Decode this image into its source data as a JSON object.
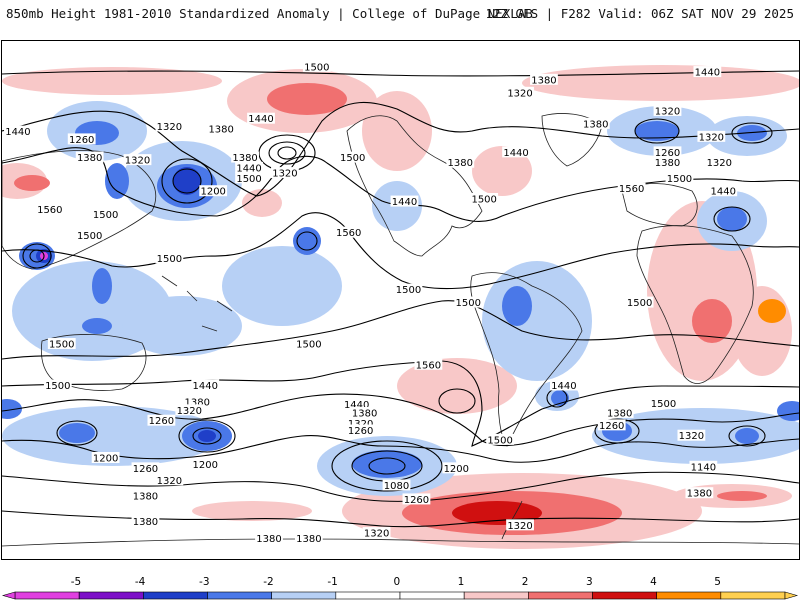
{
  "header": {
    "title_left": "850mb Height 1981-2010 Standardized Anomaly | College of DuPage NEXLAB",
    "title_right": "12Z GFS | F282 Valid: 06Z SAT NOV 29 2025"
  },
  "colors": {
    "neg5": "#e040e0",
    "neg4": "#7d10c8",
    "neg3": "#1f3fc8",
    "neg2": "#4a78e8",
    "neg1": "#b7d0f5",
    "zero": "#ffffff",
    "pos1": "#f8c8c8",
    "pos2": "#f07070",
    "pos3": "#d01010",
    "pos4": "#ff8c00",
    "pos5": "#ffd050",
    "contour": "#000000",
    "coast": "#222222"
  },
  "colorbar": {
    "ticks": [
      "-5",
      "-4",
      "-3",
      "-2",
      "-1",
      "0",
      "1",
      "2",
      "3",
      "4",
      "5"
    ]
  },
  "contour_labels": [
    {
      "text": "1440",
      "lon": 0.02,
      "lat": 0.175
    },
    {
      "text": "1260",
      "lon": 0.1,
      "lat": 0.19
    },
    {
      "text": "1380",
      "lon": 0.11,
      "lat": 0.225
    },
    {
      "text": "1320",
      "lon": 0.17,
      "lat": 0.23
    },
    {
      "text": "1560",
      "lon": 0.06,
      "lat": 0.325
    },
    {
      "text": "1500",
      "lon": 0.13,
      "lat": 0.335
    },
    {
      "text": "1500",
      "lon": 0.11,
      "lat": 0.375
    },
    {
      "text": "1320",
      "lon": 0.21,
      "lat": 0.165
    },
    {
      "text": "1380",
      "lon": 0.275,
      "lat": 0.17
    },
    {
      "text": "1440",
      "lon": 0.325,
      "lat": 0.15
    },
    {
      "text": "1500",
      "lon": 0.395,
      "lat": 0.05
    },
    {
      "text": "1380",
      "lon": 0.305,
      "lat": 0.225
    },
    {
      "text": "1440",
      "lon": 0.31,
      "lat": 0.245
    },
    {
      "text": "1500",
      "lon": 0.31,
      "lat": 0.265
    },
    {
      "text": "1320",
      "lon": 0.355,
      "lat": 0.255
    },
    {
      "text": "1200",
      "lon": 0.265,
      "lat": 0.29
    },
    {
      "text": "1500",
      "lon": 0.44,
      "lat": 0.225
    },
    {
      "text": "1560",
      "lon": 0.435,
      "lat": 0.37
    },
    {
      "text": "1500",
      "lon": 0.21,
      "lat": 0.42
    },
    {
      "text": "1500",
      "lon": 0.585,
      "lat": 0.505
    },
    {
      "text": "1500",
      "lon": 0.51,
      "lat": 0.48
    },
    {
      "text": "1500",
      "lon": 0.075,
      "lat": 0.585
    },
    {
      "text": "1500",
      "lon": 0.385,
      "lat": 0.585
    },
    {
      "text": "1500",
      "lon": 0.8,
      "lat": 0.505
    },
    {
      "text": "1380",
      "lon": 0.68,
      "lat": 0.075
    },
    {
      "text": "1320",
      "lon": 0.65,
      "lat": 0.1
    },
    {
      "text": "1380",
      "lon": 0.745,
      "lat": 0.16
    },
    {
      "text": "1440",
      "lon": 0.885,
      "lat": 0.06
    },
    {
      "text": "1320",
      "lon": 0.835,
      "lat": 0.135
    },
    {
      "text": "1260",
      "lon": 0.835,
      "lat": 0.215
    },
    {
      "text": "1380",
      "lon": 0.835,
      "lat": 0.235
    },
    {
      "text": "1320",
      "lon": 0.89,
      "lat": 0.185
    },
    {
      "text": "1320",
      "lon": 0.9,
      "lat": 0.235
    },
    {
      "text": "1380",
      "lon": 0.575,
      "lat": 0.235
    },
    {
      "text": "1440",
      "lon": 0.645,
      "lat": 0.215
    },
    {
      "text": "1440",
      "lon": 0.505,
      "lat": 0.31
    },
    {
      "text": "1500",
      "lon": 0.605,
      "lat": 0.305
    },
    {
      "text": "1560",
      "lon": 0.79,
      "lat": 0.285
    },
    {
      "text": "1500",
      "lon": 0.85,
      "lat": 0.265
    },
    {
      "text": "1440",
      "lon": 0.905,
      "lat": 0.29
    },
    {
      "text": "1560",
      "lon": 0.535,
      "lat": 0.625
    },
    {
      "text": "1440",
      "lon": 0.705,
      "lat": 0.665
    },
    {
      "text": "1500",
      "lon": 0.07,
      "lat": 0.665
    },
    {
      "text": "1440",
      "lon": 0.255,
      "lat": 0.665
    },
    {
      "text": "1380",
      "lon": 0.245,
      "lat": 0.697
    },
    {
      "text": "1320",
      "lon": 0.235,
      "lat": 0.713
    },
    {
      "text": "1260",
      "lon": 0.2,
      "lat": 0.733
    },
    {
      "text": "1440",
      "lon": 0.445,
      "lat": 0.702
    },
    {
      "text": "1380",
      "lon": 0.455,
      "lat": 0.718
    },
    {
      "text": "1320",
      "lon": 0.45,
      "lat": 0.738
    },
    {
      "text": "1260",
      "lon": 0.45,
      "lat": 0.752
    },
    {
      "text": "1200",
      "lon": 0.13,
      "lat": 0.805
    },
    {
      "text": "1200",
      "lon": 0.255,
      "lat": 0.818
    },
    {
      "text": "1260",
      "lon": 0.18,
      "lat": 0.825
    },
    {
      "text": "1320",
      "lon": 0.21,
      "lat": 0.848
    },
    {
      "text": "1380",
      "lon": 0.18,
      "lat": 0.878
    },
    {
      "text": "1380",
      "lon": 0.18,
      "lat": 0.928
    },
    {
      "text": "1200",
      "lon": 0.57,
      "lat": 0.825
    },
    {
      "text": "1080",
      "lon": 0.495,
      "lat": 0.858
    },
    {
      "text": "1260",
      "lon": 0.52,
      "lat": 0.885
    },
    {
      "text": "1320",
      "lon": 0.47,
      "lat": 0.95
    },
    {
      "text": "1380",
      "lon": 0.335,
      "lat": 0.96
    },
    {
      "text": "1380",
      "lon": 0.385,
      "lat": 0.96
    },
    {
      "text": "1500",
      "lon": 0.625,
      "lat": 0.77
    },
    {
      "text": "1380",
      "lon": 0.775,
      "lat": 0.718
    },
    {
      "text": "1260",
      "lon": 0.765,
      "lat": 0.742
    },
    {
      "text": "1320",
      "lon": 0.865,
      "lat": 0.762
    },
    {
      "text": "1500",
      "lon": 0.83,
      "lat": 0.7
    },
    {
      "text": "1140",
      "lon": 0.88,
      "lat": 0.822
    },
    {
      "text": "1380",
      "lon": 0.875,
      "lat": 0.873
    },
    {
      "text": "1320",
      "lon": 0.65,
      "lat": 0.935
    }
  ]
}
